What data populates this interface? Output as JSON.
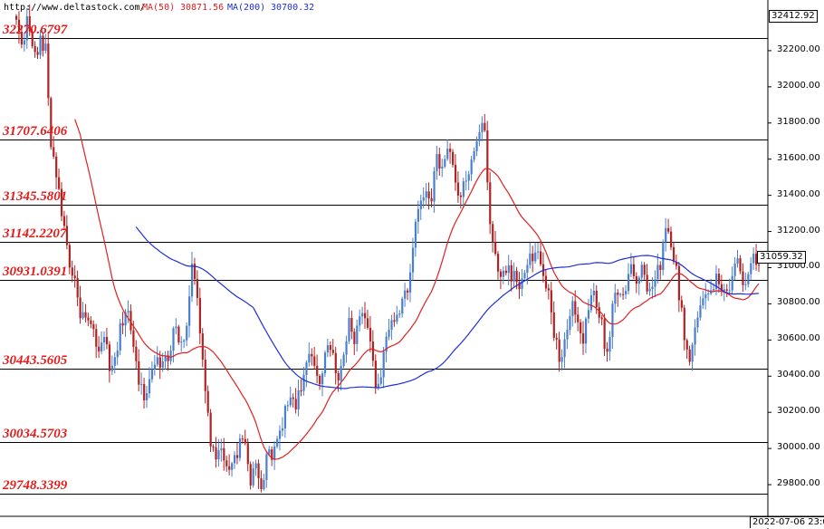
{
  "header": {
    "source": "http://www.deltastock.com/",
    "ma50_label": "MA(50)",
    "ma50_value": "30871.56",
    "ma200_label": "MA(200)",
    "ma200_value": "30700.32"
  },
  "colors": {
    "bull": "#4a7fd0",
    "bear": "#b22222",
    "ma50": "#e02020",
    "ma200": "#1f2fd8",
    "level_text": "#e51b1b"
  },
  "current_price": "31059.32",
  "top_price_box": "32412.92",
  "bottom_date": "2022-07-06 23:0",
  "chart_data": {
    "type": "candlestick",
    "ylim": [
      29625,
      32430
    ],
    "y_ticks": [
      "32200.00",
      "32000.00",
      "31800.00",
      "31600.00",
      "31400.00",
      "31200.00",
      "31000.00",
      "30800.00",
      "30600.00",
      "30400.00",
      "30200.00",
      "30000.00",
      "29800.00"
    ],
    "levels": [
      "32270.6797",
      "31707.6406",
      "31345.5801",
      "31142.2207",
      "30931.0391",
      "30443.5605",
      "30034.5703",
      "29748.3399"
    ],
    "price_path": [
      32350,
      32250,
      32380,
      32150,
      32250,
      32200,
      31650,
      31500,
      31250,
      31050,
      30900,
      30750,
      30700,
      30650,
      30500,
      30650,
      30400,
      30500,
      30700,
      30800,
      30550,
      30350,
      30300,
      30400,
      30550,
      30450,
      30500,
      30700,
      30600,
      30650,
      31000,
      30800,
      30400,
      30100,
      29900,
      30050,
      29850,
      29950,
      30000,
      30050,
      29800,
      29950,
      29700,
      30000,
      29950,
      30100,
      30200,
      30300,
      30250,
      30400,
      30500,
      30450,
      30300,
      30600,
      30550,
      30400,
      30500,
      30700,
      30600,
      30800,
      30700,
      30450,
      30300,
      30550,
      30700,
      30750,
      30800,
      30900,
      31200,
      31350,
      31450,
      31400,
      31600,
      31550,
      31700,
      31450,
      31400,
      31500,
      31600,
      31700,
      31850,
      31200,
      31050,
      30950,
      31000,
      30950,
      30900,
      30950,
      31050,
      31100,
      30950,
      30850,
      30600,
      30500,
      30600,
      30800,
      30700,
      30600,
      30800,
      30850,
      30700,
      30500,
      30800,
      30900,
      30850,
      31050,
      30900,
      31000,
      30850,
      30950,
      31000,
      31200,
      31150,
      30950,
      30700,
      30450,
      30650,
      30800,
      30900,
      30850,
      30950,
      30850,
      30900,
      31050,
      30950,
      30900,
      31050,
      31000
    ]
  }
}
